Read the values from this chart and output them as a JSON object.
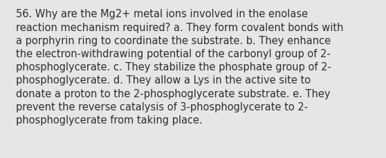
{
  "lines": [
    "56. Why are the Mg2+ metal ions involved in the enolase",
    "reaction mechanism required? a. They form covalent bonds with",
    "a porphyrin ring to coordinate the substrate. b. They enhance",
    "the electron-withdrawing potential of the carbonyl group of 2-",
    "phosphoglycerate. c. They stabilize the phosphate group of 2-",
    "phosphoglycerate. d. They allow a Lys in the active site to",
    "donate a proton to the 2-phosphoglycerate substrate. e. They",
    "prevent the reverse catalysis of 3-phosphoglycerate to 2-",
    "phosphoglycerate from taking place."
  ],
  "background_color": "#e6e6e6",
  "text_color": "#2e2e2e",
  "font_size": 10.5,
  "fig_width": 5.58,
  "fig_height": 2.3,
  "dpi": 100
}
